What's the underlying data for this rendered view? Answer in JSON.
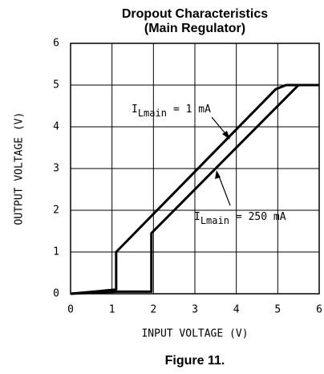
{
  "chart_data": {
    "type": "line",
    "title": "Dropout Characteristics",
    "subtitle": "(Main Regulator)",
    "x_label": "INPUT VOLTAGE (V)",
    "y_label": "OUTPUT VOLTAGE (V)",
    "caption": "Figure 11.",
    "xlim": [
      0,
      6
    ],
    "ylim": [
      0,
      6
    ],
    "xticks": [
      0,
      1,
      2,
      3,
      4,
      5,
      6
    ],
    "yticks": [
      0,
      1,
      2,
      3,
      4,
      5,
      6
    ],
    "grid": true,
    "series": [
      {
        "color": "#000000",
        "x": [
          0,
          1.1,
          1.1,
          4.95,
          5.2,
          6
        ],
        "values": [
          0,
          0.1,
          1.0,
          4.9,
          5,
          5
        ]
      },
      {
        "color": "#000000",
        "x": [
          0,
          1.1,
          1.95,
          1.95,
          5.5,
          6
        ],
        "values": [
          0,
          0.05,
          0.05,
          1.45,
          5,
          5
        ]
      }
    ],
    "annotations": [
      {
        "symbol": "I",
        "subscript": "Lmain",
        "text": "= 1 mA"
      },
      {
        "symbol": "I",
        "subscript": "Lmain",
        "text": "= 250 mA"
      }
    ]
  }
}
